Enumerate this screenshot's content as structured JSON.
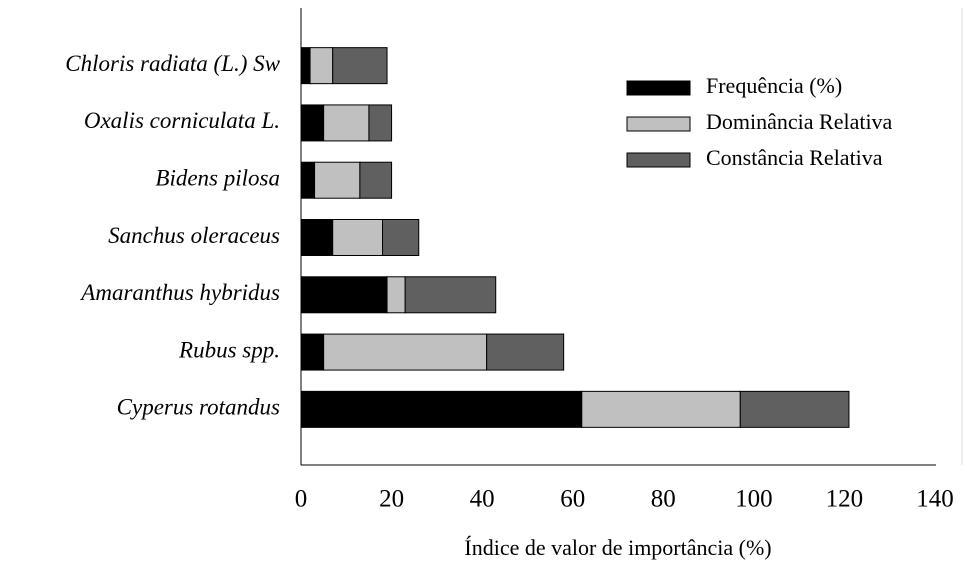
{
  "chart_data": {
    "type": "stacked_barh",
    "xlabel": "Índice de valor de importância (%)",
    "categories": [
      "Chloris radiata (L.) Sw",
      "Oxalis corniculata L.",
      "Bidens pilosa",
      "Sanchus oleraceus",
      "Amaranthus hybridus",
      "Rubus spp.",
      "Cyperus rotandus"
    ],
    "series": [
      {
        "name": "Frequência (%)",
        "color": "#000000",
        "values": [
          2,
          5,
          3,
          7,
          19,
          5,
          62
        ]
      },
      {
        "name": "Dominância Relativa",
        "color": "#c0c0c0",
        "values": [
          5,
          10,
          10,
          11,
          4,
          36,
          35
        ]
      },
      {
        "name": "Constância Relativa",
        "color": "#606060",
        "values": [
          12,
          5,
          7,
          8,
          20,
          17,
          24
        ]
      }
    ],
    "xlim": [
      0,
      140
    ],
    "xticks": [
      0,
      20,
      40,
      60,
      80,
      100,
      120,
      140
    ],
    "legend": "upper right"
  }
}
